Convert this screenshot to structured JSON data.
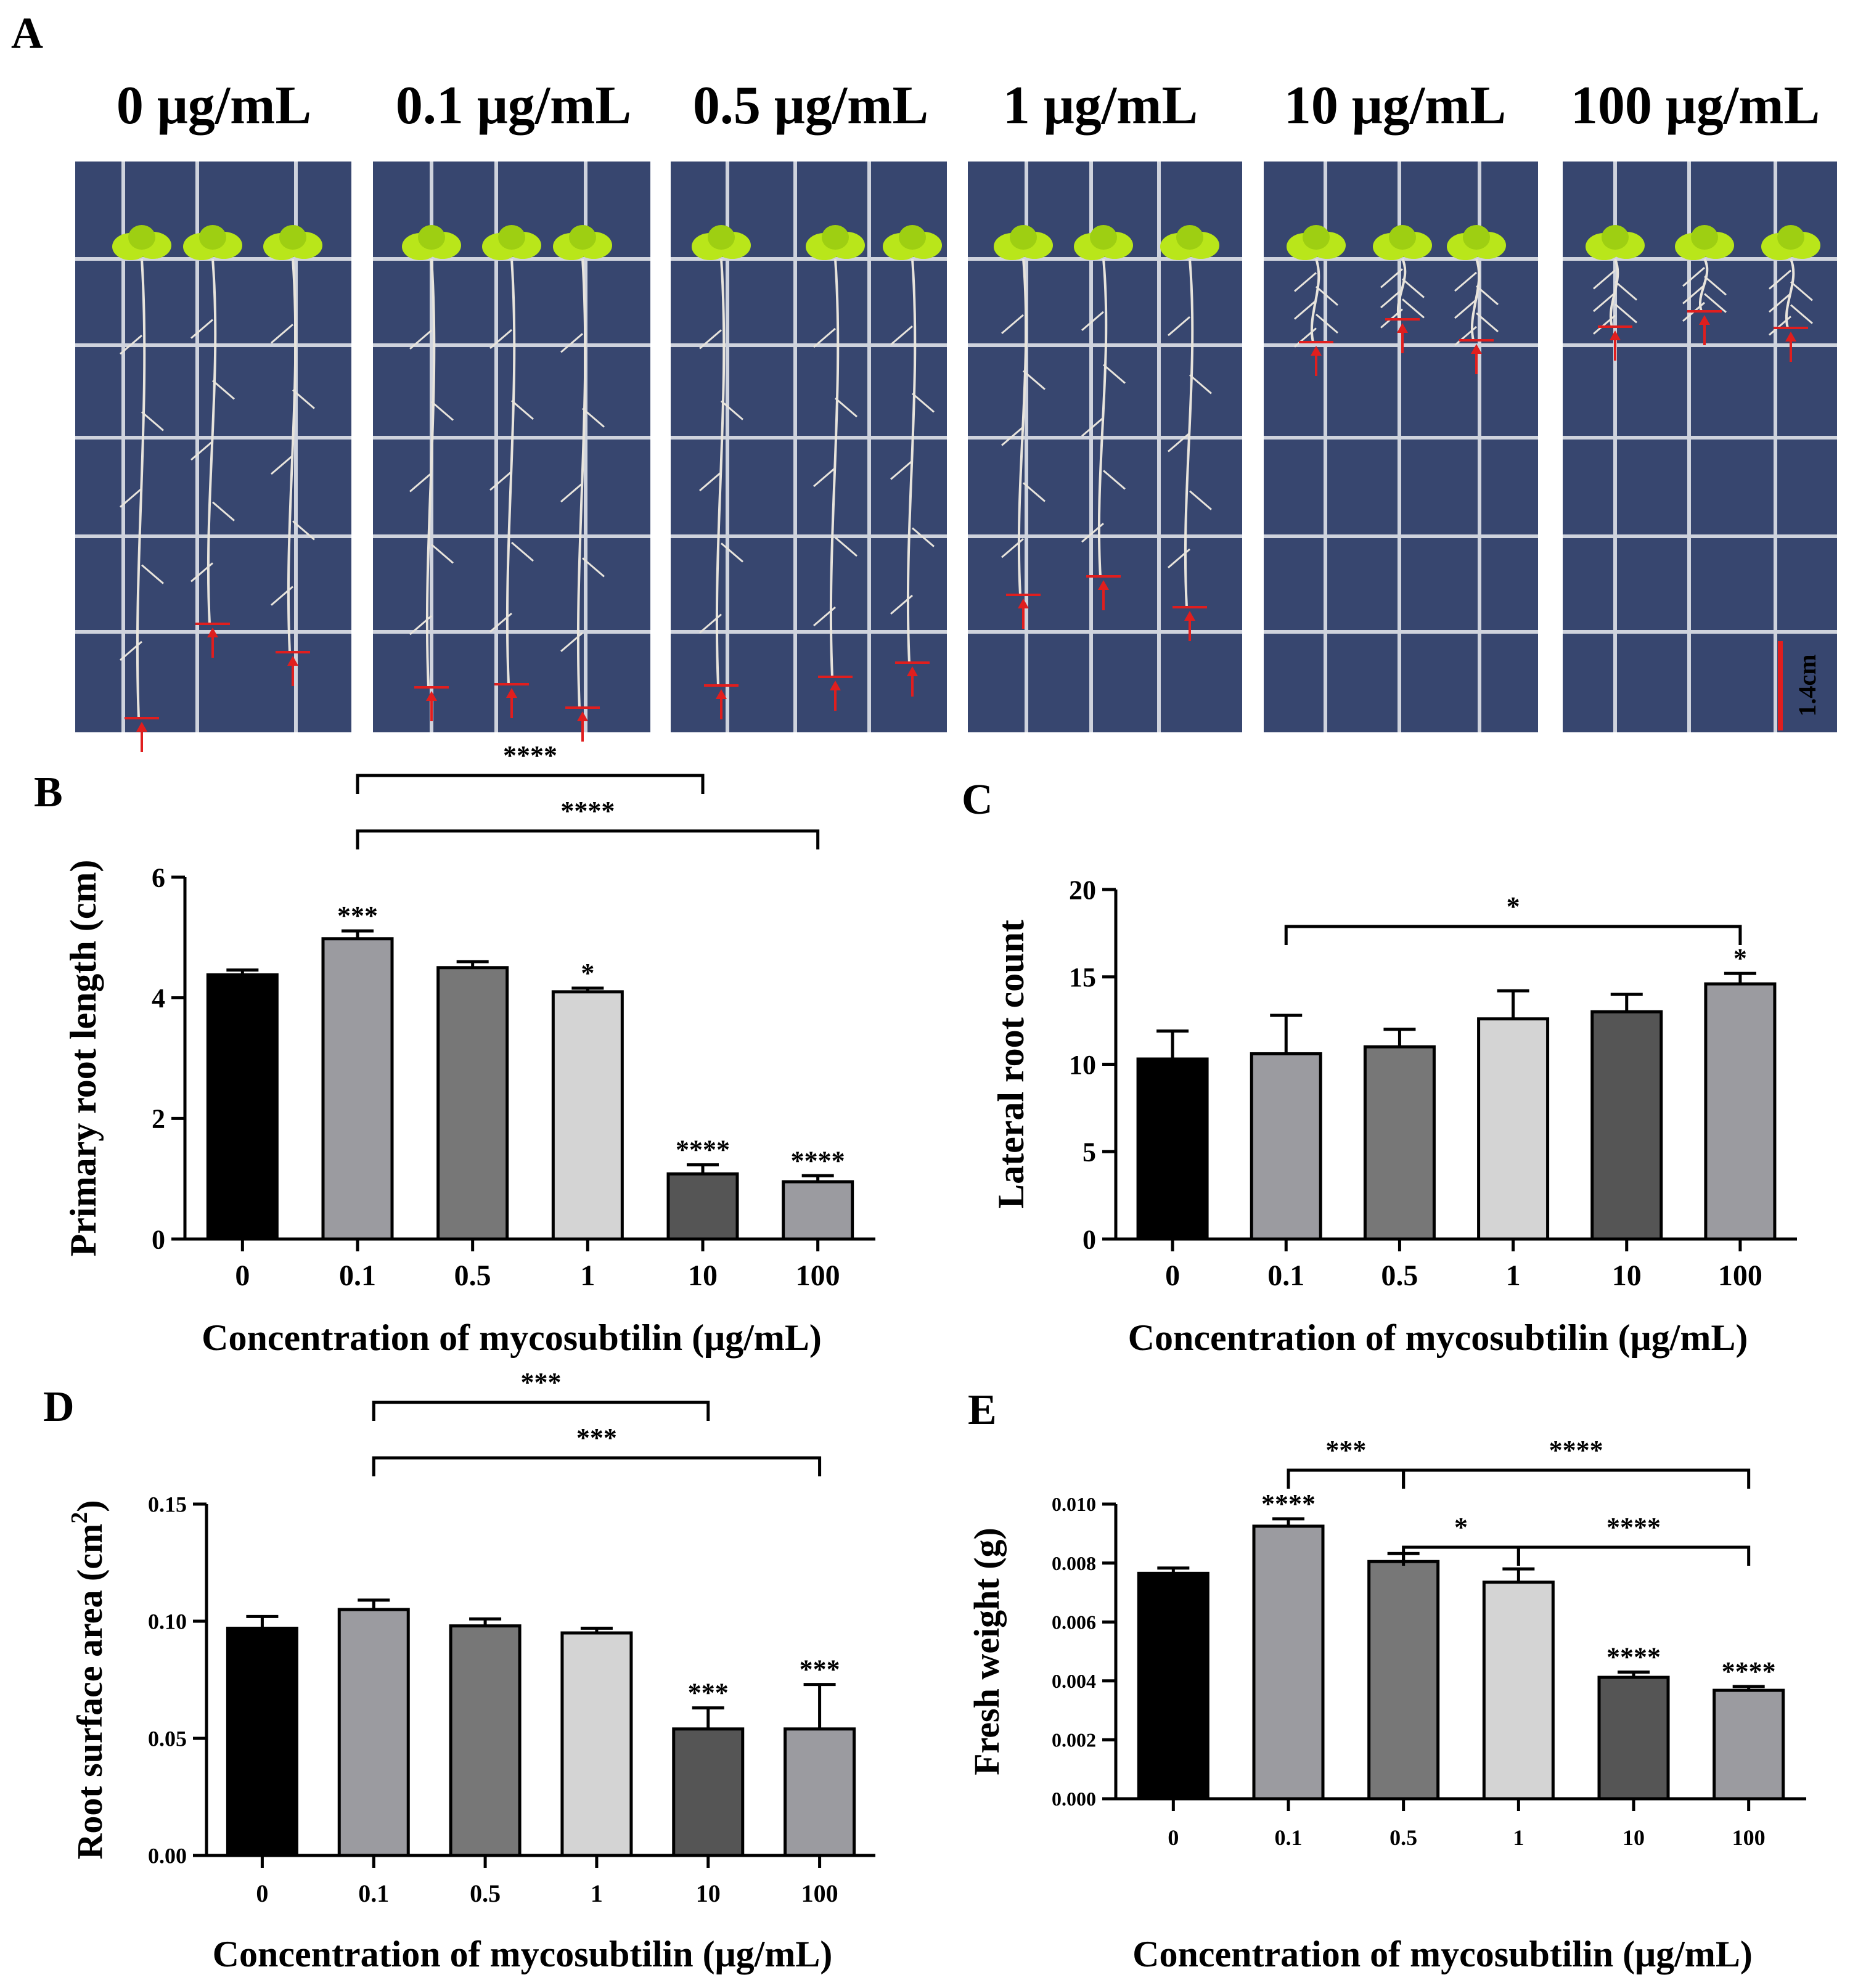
{
  "panel_a": {
    "letter": "A",
    "concentration_labels": [
      "0 μg/mL",
      "0.1 μg/mL",
      "0.5 μg/mL",
      "1 μg/mL",
      "10 μg/mL",
      "100 μg/mL"
    ],
    "scale_bar_label": "1.4cm",
    "plate_color": "#37466f",
    "leaf_color": "#b9e61a",
    "marker_color": "#e01e1e"
  },
  "chart_data": [
    {
      "panel": "B",
      "type": "bar",
      "categories": [
        "0",
        "0.1",
        "0.5",
        "1",
        "10",
        "100"
      ],
      "values": [
        4.38,
        4.98,
        4.5,
        4.1,
        1.08,
        0.95
      ],
      "errors": [
        0.08,
        0.13,
        0.1,
        0.06,
        0.15,
        0.1
      ],
      "bar_colors": [
        "#000000",
        "#9b9ba0",
        "#777777",
        "#d4d4d4",
        "#555555",
        "#9b9ba0"
      ],
      "significance": [
        "",
        "***",
        "",
        "*",
        "****",
        "****"
      ],
      "xlabel": "Concentration of mycosubtilin (μg/mL)",
      "ylabel": "Primary root length (cm)",
      "ylim": [
        0,
        6
      ],
      "yticks": [
        "0",
        "2",
        "4",
        "6"
      ],
      "brackets": [
        {
          "from": 1,
          "to": 4,
          "label": "****"
        },
        {
          "from": 1,
          "to": 5,
          "label": "****"
        }
      ]
    },
    {
      "panel": "C",
      "type": "bar",
      "categories": [
        "0",
        "0.1",
        "0.5",
        "1",
        "10",
        "100"
      ],
      "values": [
        10.3,
        10.6,
        11.0,
        12.6,
        13.0,
        14.6
      ],
      "errors": [
        1.6,
        2.2,
        1.0,
        1.6,
        1.0,
        0.6
      ],
      "bar_colors": [
        "#000000",
        "#9b9ba0",
        "#777777",
        "#d4d4d4",
        "#555555",
        "#9b9ba0"
      ],
      "significance": [
        "",
        "",
        "",
        "",
        "",
        "*"
      ],
      "xlabel": "Concentration of mycosubtilin (μg/mL)",
      "ylabel": "Lateral root count",
      "ylim": [
        0,
        20
      ],
      "yticks": [
        "0",
        "5",
        "10",
        "15",
        "20"
      ],
      "brackets": [
        {
          "from": 1,
          "to": 5,
          "label": "*"
        }
      ]
    },
    {
      "panel": "D",
      "type": "bar",
      "categories": [
        "0",
        "0.1",
        "0.5",
        "1",
        "10",
        "100"
      ],
      "values": [
        0.097,
        0.105,
        0.098,
        0.095,
        0.054,
        0.054
      ],
      "errors": [
        0.005,
        0.004,
        0.003,
        0.002,
        0.009,
        0.019
      ],
      "bar_colors": [
        "#000000",
        "#9b9ba0",
        "#777777",
        "#d4d4d4",
        "#555555",
        "#9b9ba0"
      ],
      "significance": [
        "",
        "",
        "",
        "",
        "***",
        "***"
      ],
      "xlabel": "Concentration of mycosubtilin (μg/mL)",
      "ylabel_main": "Root surface area (cm",
      "ylabel_sup": "2",
      "ylabel_end": ")",
      "ylim": [
        0,
        0.15
      ],
      "yticks": [
        "0.00",
        "0.05",
        "0.10",
        "0.15"
      ],
      "brackets": [
        {
          "from": 1,
          "to": 4,
          "label": "***"
        },
        {
          "from": 1,
          "to": 5,
          "label": "***"
        }
      ]
    },
    {
      "panel": "E",
      "type": "bar",
      "categories": [
        "0",
        "0.1",
        "0.5",
        "1",
        "10",
        "100"
      ],
      "values": [
        0.00765,
        0.00925,
        0.00805,
        0.00735,
        0.00412,
        0.00368
      ],
      "errors": [
        0.00018,
        0.00025,
        0.00027,
        0.00045,
        0.00018,
        0.00013
      ],
      "bar_colors": [
        "#000000",
        "#9b9ba0",
        "#777777",
        "#d4d4d4",
        "#555555",
        "#9b9ba0"
      ],
      "significance": [
        "",
        "****",
        "",
        "",
        "****",
        "****"
      ],
      "xlabel": "Concentration of mycosubtilin (μg/mL)",
      "ylabel": "Fresh weight (g)",
      "ylim": [
        0,
        0.01
      ],
      "yticks": [
        "0.000",
        "0.002",
        "0.004",
        "0.006",
        "0.008",
        "0.010"
      ],
      "brackets": [
        {
          "from": 1,
          "to": 2,
          "label": "***",
          "sub": false
        },
        {
          "from": 2,
          "to": 5,
          "label": "****",
          "sub": false
        },
        {
          "from": 2,
          "to": 3,
          "label": "*",
          "sub": true
        },
        {
          "from": 3,
          "to": 5,
          "label": "****",
          "sub": true
        }
      ]
    }
  ]
}
